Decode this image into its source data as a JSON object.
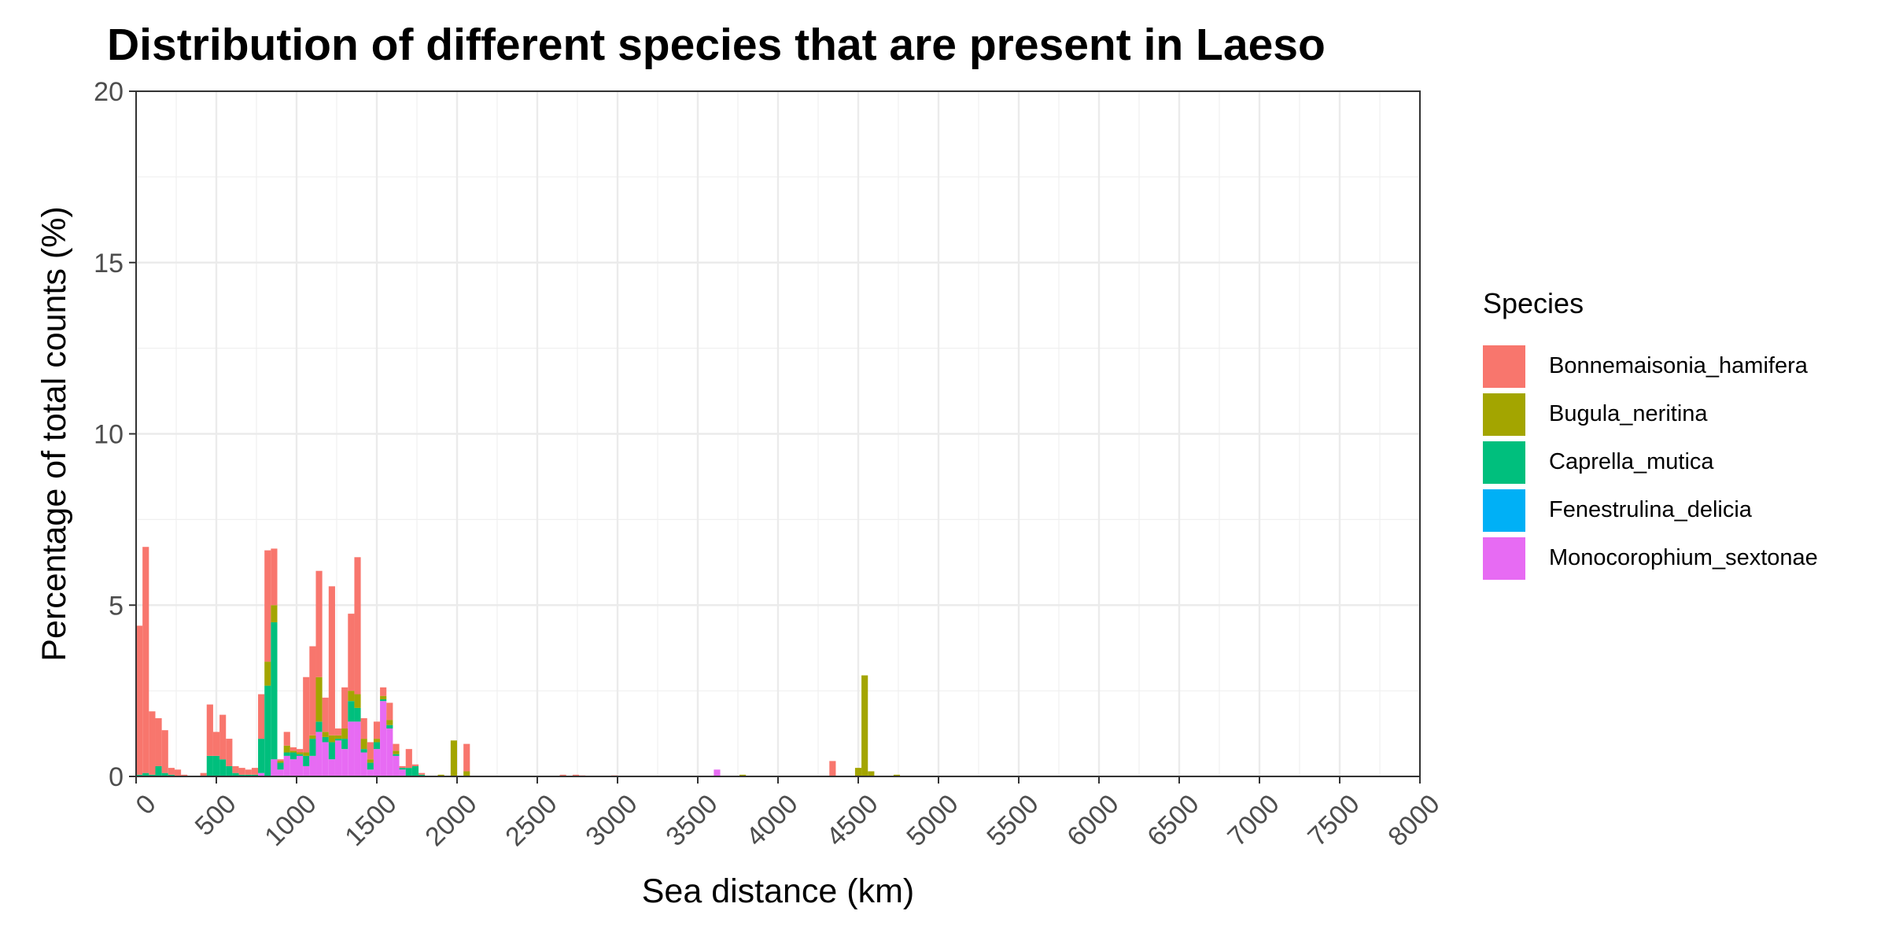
{
  "chart_data": {
    "type": "bar",
    "stacked": true,
    "title": "Distribution of different species that are present in Laeso",
    "xlabel": "Sea distance (km)",
    "ylabel": "Percentage of total counts (%)",
    "xlim": [
      0,
      8000
    ],
    "ylim": [
      0,
      20
    ],
    "x_ticks": [
      0,
      500,
      1000,
      1500,
      2000,
      2500,
      3000,
      3500,
      4000,
      4500,
      5000,
      5500,
      6000,
      6500,
      7000,
      7500,
      8000
    ],
    "y_ticks": [
      0,
      5,
      10,
      15,
      20
    ],
    "grid": true,
    "legend_position": "right",
    "legend_title": "Species",
    "bin_width": 40,
    "series": [
      {
        "name": "Bonnemaisonia_hamifera",
        "color": "#F8766D"
      },
      {
        "name": "Bugula_neritina",
        "color": "#A3A500"
      },
      {
        "name": "Caprella_mutica",
        "color": "#00BF7D"
      },
      {
        "name": "Fenestrulina_delicia",
        "color": "#00B0F6"
      },
      {
        "name": "Monocorophium_sextonae",
        "color": "#E76BF3"
      }
    ],
    "bins": [
      {
        "x": 0,
        "values": [
          4.35,
          0,
          0.05,
          0,
          0
        ]
      },
      {
        "x": 40,
        "values": [
          6.6,
          0,
          0.1,
          0,
          0
        ]
      },
      {
        "x": 80,
        "values": [
          1.85,
          0,
          0.05,
          0,
          0
        ]
      },
      {
        "x": 120,
        "values": [
          1.4,
          0,
          0.3,
          0,
          0
        ]
      },
      {
        "x": 160,
        "values": [
          1.25,
          0,
          0.1,
          0,
          0
        ]
      },
      {
        "x": 200,
        "values": [
          0.2,
          0,
          0.05,
          0,
          0
        ]
      },
      {
        "x": 240,
        "values": [
          0.2,
          0,
          0,
          0,
          0
        ]
      },
      {
        "x": 280,
        "values": [
          0.05,
          0,
          0,
          0,
          0
        ]
      },
      {
        "x": 400,
        "values": [
          0.1,
          0,
          0,
          0,
          0
        ]
      },
      {
        "x": 440,
        "values": [
          1.5,
          0,
          0.6,
          0,
          0
        ]
      },
      {
        "x": 480,
        "values": [
          0.7,
          0,
          0.6,
          0,
          0
        ]
      },
      {
        "x": 520,
        "values": [
          1.3,
          0,
          0.5,
          0,
          0
        ]
      },
      {
        "x": 560,
        "values": [
          0.8,
          0,
          0.3,
          0,
          0
        ]
      },
      {
        "x": 600,
        "values": [
          0.2,
          0,
          0.1,
          0,
          0
        ]
      },
      {
        "x": 640,
        "values": [
          0.2,
          0,
          0.05,
          0,
          0
        ]
      },
      {
        "x": 680,
        "values": [
          0.15,
          0,
          0.05,
          0,
          0
        ]
      },
      {
        "x": 720,
        "values": [
          0.2,
          0,
          0.05,
          0,
          0
        ]
      },
      {
        "x": 760,
        "values": [
          1.3,
          0,
          1.0,
          0,
          0.1
        ]
      },
      {
        "x": 800,
        "values": [
          3.25,
          0.7,
          2.65,
          0,
          0
        ]
      },
      {
        "x": 840,
        "values": [
          1.65,
          0.5,
          4.0,
          0,
          0.5
        ]
      },
      {
        "x": 880,
        "values": [
          0.05,
          0.05,
          0.2,
          0,
          0.2
        ]
      },
      {
        "x": 920,
        "values": [
          0.4,
          0.2,
          0.1,
          0,
          0.6
        ]
      },
      {
        "x": 960,
        "values": [
          0.1,
          0.05,
          0.2,
          0,
          0.5
        ]
      },
      {
        "x": 1000,
        "values": [
          0.1,
          0.05,
          0.05,
          0,
          0.6
        ]
      },
      {
        "x": 1040,
        "values": [
          2.2,
          0.1,
          0.3,
          0,
          0.3
        ]
      },
      {
        "x": 1080,
        "values": [
          2.6,
          0.1,
          0.5,
          0,
          0.6
        ]
      },
      {
        "x": 1120,
        "values": [
          3.1,
          1.3,
          0.3,
          0,
          1.3
        ]
      },
      {
        "x": 1160,
        "values": [
          1.0,
          0.15,
          0.15,
          0,
          1.0
        ]
      },
      {
        "x": 1200,
        "values": [
          4.35,
          0.2,
          0.5,
          0,
          0.5
        ]
      },
      {
        "x": 1240,
        "values": [
          0.2,
          0.1,
          0.05,
          0,
          1.05
        ]
      },
      {
        "x": 1280,
        "values": [
          1.2,
          0.3,
          0.3,
          0,
          0.8
        ]
      },
      {
        "x": 1320,
        "values": [
          2.25,
          0.3,
          0.6,
          0,
          1.6
        ]
      },
      {
        "x": 1360,
        "values": [
          4.0,
          0.4,
          0.4,
          0,
          1.6
        ]
      },
      {
        "x": 1400,
        "values": [
          0.6,
          0.3,
          0.1,
          0,
          0.7
        ]
      },
      {
        "x": 1440,
        "values": [
          0.5,
          0.1,
          0.2,
          0,
          0.2
        ]
      },
      {
        "x": 1480,
        "values": [
          0.5,
          0.1,
          0.2,
          0,
          0.8
        ]
      },
      {
        "x": 1520,
        "values": [
          0.25,
          0.1,
          0.05,
          0,
          2.2
        ]
      },
      {
        "x": 1560,
        "values": [
          0.5,
          0.15,
          0.1,
          0,
          1.4
        ]
      },
      {
        "x": 1600,
        "values": [
          0.2,
          0.1,
          0.05,
          0,
          0.6
        ]
      },
      {
        "x": 1640,
        "values": [
          0.05,
          0,
          0.05,
          0,
          0.2
        ]
      },
      {
        "x": 1680,
        "values": [
          0.55,
          0,
          0.25,
          0,
          0
        ]
      },
      {
        "x": 1720,
        "values": [
          0.05,
          0,
          0.3,
          0,
          0
        ]
      },
      {
        "x": 1760,
        "values": [
          0.05,
          0,
          0.05,
          0,
          0
        ]
      },
      {
        "x": 1880,
        "values": [
          0,
          0.05,
          0,
          0,
          0
        ]
      },
      {
        "x": 1960,
        "values": [
          0,
          1.05,
          0,
          0,
          0
        ]
      },
      {
        "x": 2040,
        "values": [
          0.8,
          0.15,
          0,
          0,
          0
        ]
      },
      {
        "x": 2640,
        "values": [
          0.05,
          0,
          0,
          0,
          0
        ]
      },
      {
        "x": 2720,
        "values": [
          0.05,
          0,
          0,
          0,
          0
        ]
      },
      {
        "x": 2760,
        "values": [
          0.03,
          0,
          0,
          0,
          0
        ]
      },
      {
        "x": 2960,
        "values": [
          0.03,
          0,
          0,
          0,
          0
        ]
      },
      {
        "x": 3600,
        "values": [
          0,
          0,
          0,
          0,
          0.2
        ]
      },
      {
        "x": 3760,
        "values": [
          0,
          0.05,
          0,
          0,
          0
        ]
      },
      {
        "x": 4320,
        "values": [
          0.45,
          0,
          0,
          0,
          0
        ]
      },
      {
        "x": 4480,
        "values": [
          0,
          0.25,
          0,
          0,
          0
        ]
      },
      {
        "x": 4520,
        "values": [
          0,
          2.95,
          0,
          0,
          0
        ]
      },
      {
        "x": 4560,
        "values": [
          0,
          0.15,
          0,
          0,
          0
        ]
      },
      {
        "x": 4720,
        "values": [
          0,
          0.05,
          0,
          0,
          0
        ]
      }
    ]
  }
}
